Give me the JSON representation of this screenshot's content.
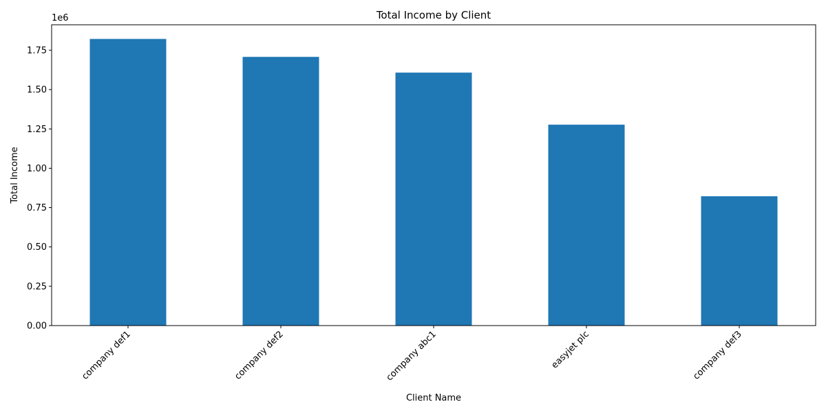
{
  "chart_data": {
    "type": "bar",
    "title": "Total Income by Client",
    "xlabel": "Client Name",
    "ylabel": "Total Income",
    "offset_text": "1e6",
    "categories": [
      "company def1",
      "company def2",
      "company abc1",
      "easyjet plc",
      "company def3"
    ],
    "values": [
      1822000,
      1708000,
      1608000,
      1277000,
      822000
    ],
    "ylim": [
      0,
      1912000
    ],
    "yticks": [
      0,
      250000,
      500000,
      750000,
      1000000,
      1250000,
      1500000,
      1750000
    ],
    "ytick_labels": [
      "0.00",
      "0.25",
      "0.50",
      "0.75",
      "1.00",
      "1.25",
      "1.50",
      "1.75"
    ],
    "bar_color": "#1f77b4",
    "grid": false,
    "legend": "none"
  }
}
